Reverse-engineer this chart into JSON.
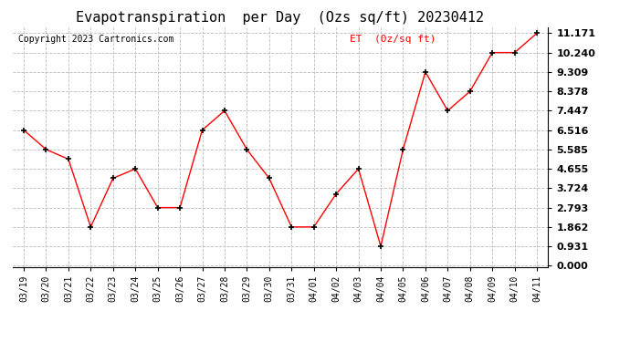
{
  "title": "Evapotranspiration  per Day  (Ozs sq/ft) 20230412",
  "copyright": "Copyright 2023 Cartronics.com",
  "legend_label": "ET  (0z/sq ft)",
  "x_labels": [
    "03/19",
    "03/20",
    "03/21",
    "03/22",
    "03/23",
    "03/24",
    "03/25",
    "03/26",
    "03/27",
    "03/28",
    "03/29",
    "03/30",
    "03/31",
    "04/01",
    "04/02",
    "04/03",
    "04/04",
    "04/05",
    "04/06",
    "04/07",
    "04/08",
    "04/09",
    "04/10",
    "04/11"
  ],
  "y_values": [
    6.516,
    5.585,
    5.12,
    1.862,
    4.2,
    4.655,
    2.793,
    2.793,
    6.516,
    7.447,
    5.585,
    4.2,
    1.862,
    1.862,
    3.45,
    4.655,
    0.931,
    5.585,
    9.309,
    7.447,
    8.378,
    10.24,
    10.24,
    11.171
  ],
  "y_ticks": [
    0.0,
    0.931,
    1.862,
    2.793,
    3.724,
    4.655,
    5.585,
    6.516,
    7.447,
    8.378,
    9.309,
    10.24,
    11.171
  ],
  "line_color": "red",
  "marker": "+",
  "marker_color": "black",
  "background_color": "white",
  "grid_color": "#bbbbbb",
  "title_fontsize": 11,
  "tick_fontsize": 7,
  "ytick_fontsize": 8,
  "legend_color": "red",
  "copyright_fontsize": 7
}
